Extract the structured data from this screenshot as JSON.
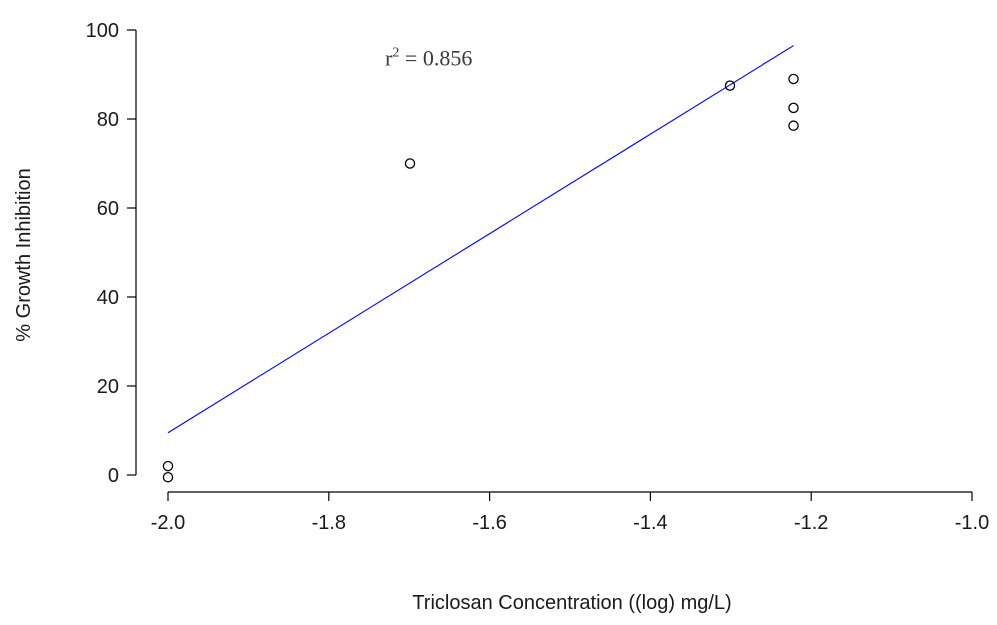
{
  "chart_data": {
    "type": "scatter",
    "xlabel": "Triclosan Concentration ((log) mg/L)",
    "ylabel": "% Growth Inhibition",
    "xlim": [
      -2.0,
      -1.0
    ],
    "ylim": [
      0,
      100
    ],
    "x_ticks": [
      -2.0,
      -1.8,
      -1.6,
      -1.4,
      -1.2,
      -1.0
    ],
    "x_tick_labels": [
      "-2.0",
      "-1.8",
      "-1.6",
      "-1.4",
      "-1.2",
      "-1.0"
    ],
    "y_ticks": [
      0,
      20,
      40,
      60,
      80,
      100
    ],
    "y_tick_labels": [
      "0",
      "20",
      "40",
      "60",
      "80",
      "100"
    ],
    "points": [
      {
        "x": -2.0,
        "y": 2.0
      },
      {
        "x": -2.0,
        "y": -0.5
      },
      {
        "x": -1.699,
        "y": 70.0
      },
      {
        "x": -1.301,
        "y": 87.5
      },
      {
        "x": -1.222,
        "y": 89.0
      },
      {
        "x": -1.222,
        "y": 82.5
      },
      {
        "x": -1.222,
        "y": 78.5
      }
    ],
    "fit_line": {
      "x": [
        -2.0,
        -1.222
      ],
      "y": [
        9.5,
        96.5
      ],
      "color": "#0000ff"
    },
    "annotation": {
      "base": "r",
      "superscript": "2",
      "rest": " = 0.856",
      "x": -1.73,
      "y": 92
    },
    "grid": false,
    "legend": "none"
  }
}
